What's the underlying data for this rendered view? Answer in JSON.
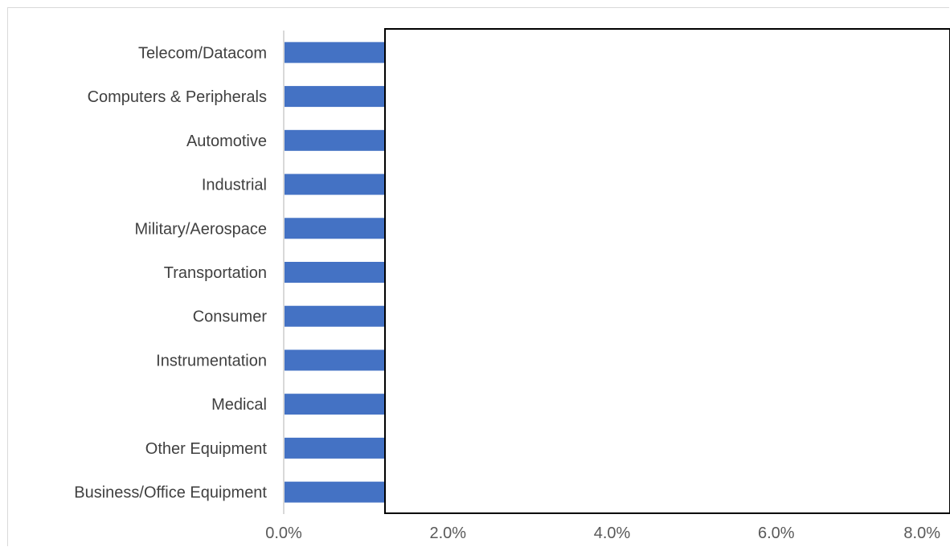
{
  "chart_data": {
    "type": "bar",
    "orientation": "horizontal",
    "categories": [
      "Telecom/Datacom",
      "Computers & Peripherals",
      "Automotive",
      "Industrial",
      "Military/Aerospace",
      "Transportation",
      "Consumer",
      "Instrumentation",
      "Medical",
      "Other Equipment",
      "Business/Office Equipment"
    ],
    "values": [
      null,
      null,
      null,
      null,
      null,
      null,
      null,
      null,
      null,
      null,
      null
    ],
    "visible_min_value": 1.3,
    "x_ticks": [
      "0.0%",
      "2.0%",
      "4.0%",
      "6.0%",
      "8.0%"
    ],
    "xlim": [
      0,
      8
    ],
    "title": "",
    "xlabel": "",
    "ylabel": "",
    "grid": false,
    "legend": "none",
    "bar_color": "#4472c4",
    "axis_color": "#d9d9d9",
    "note_values": "bars are partially hidden behind an opaque white box; only the portion up to about 1.3% is visible"
  }
}
